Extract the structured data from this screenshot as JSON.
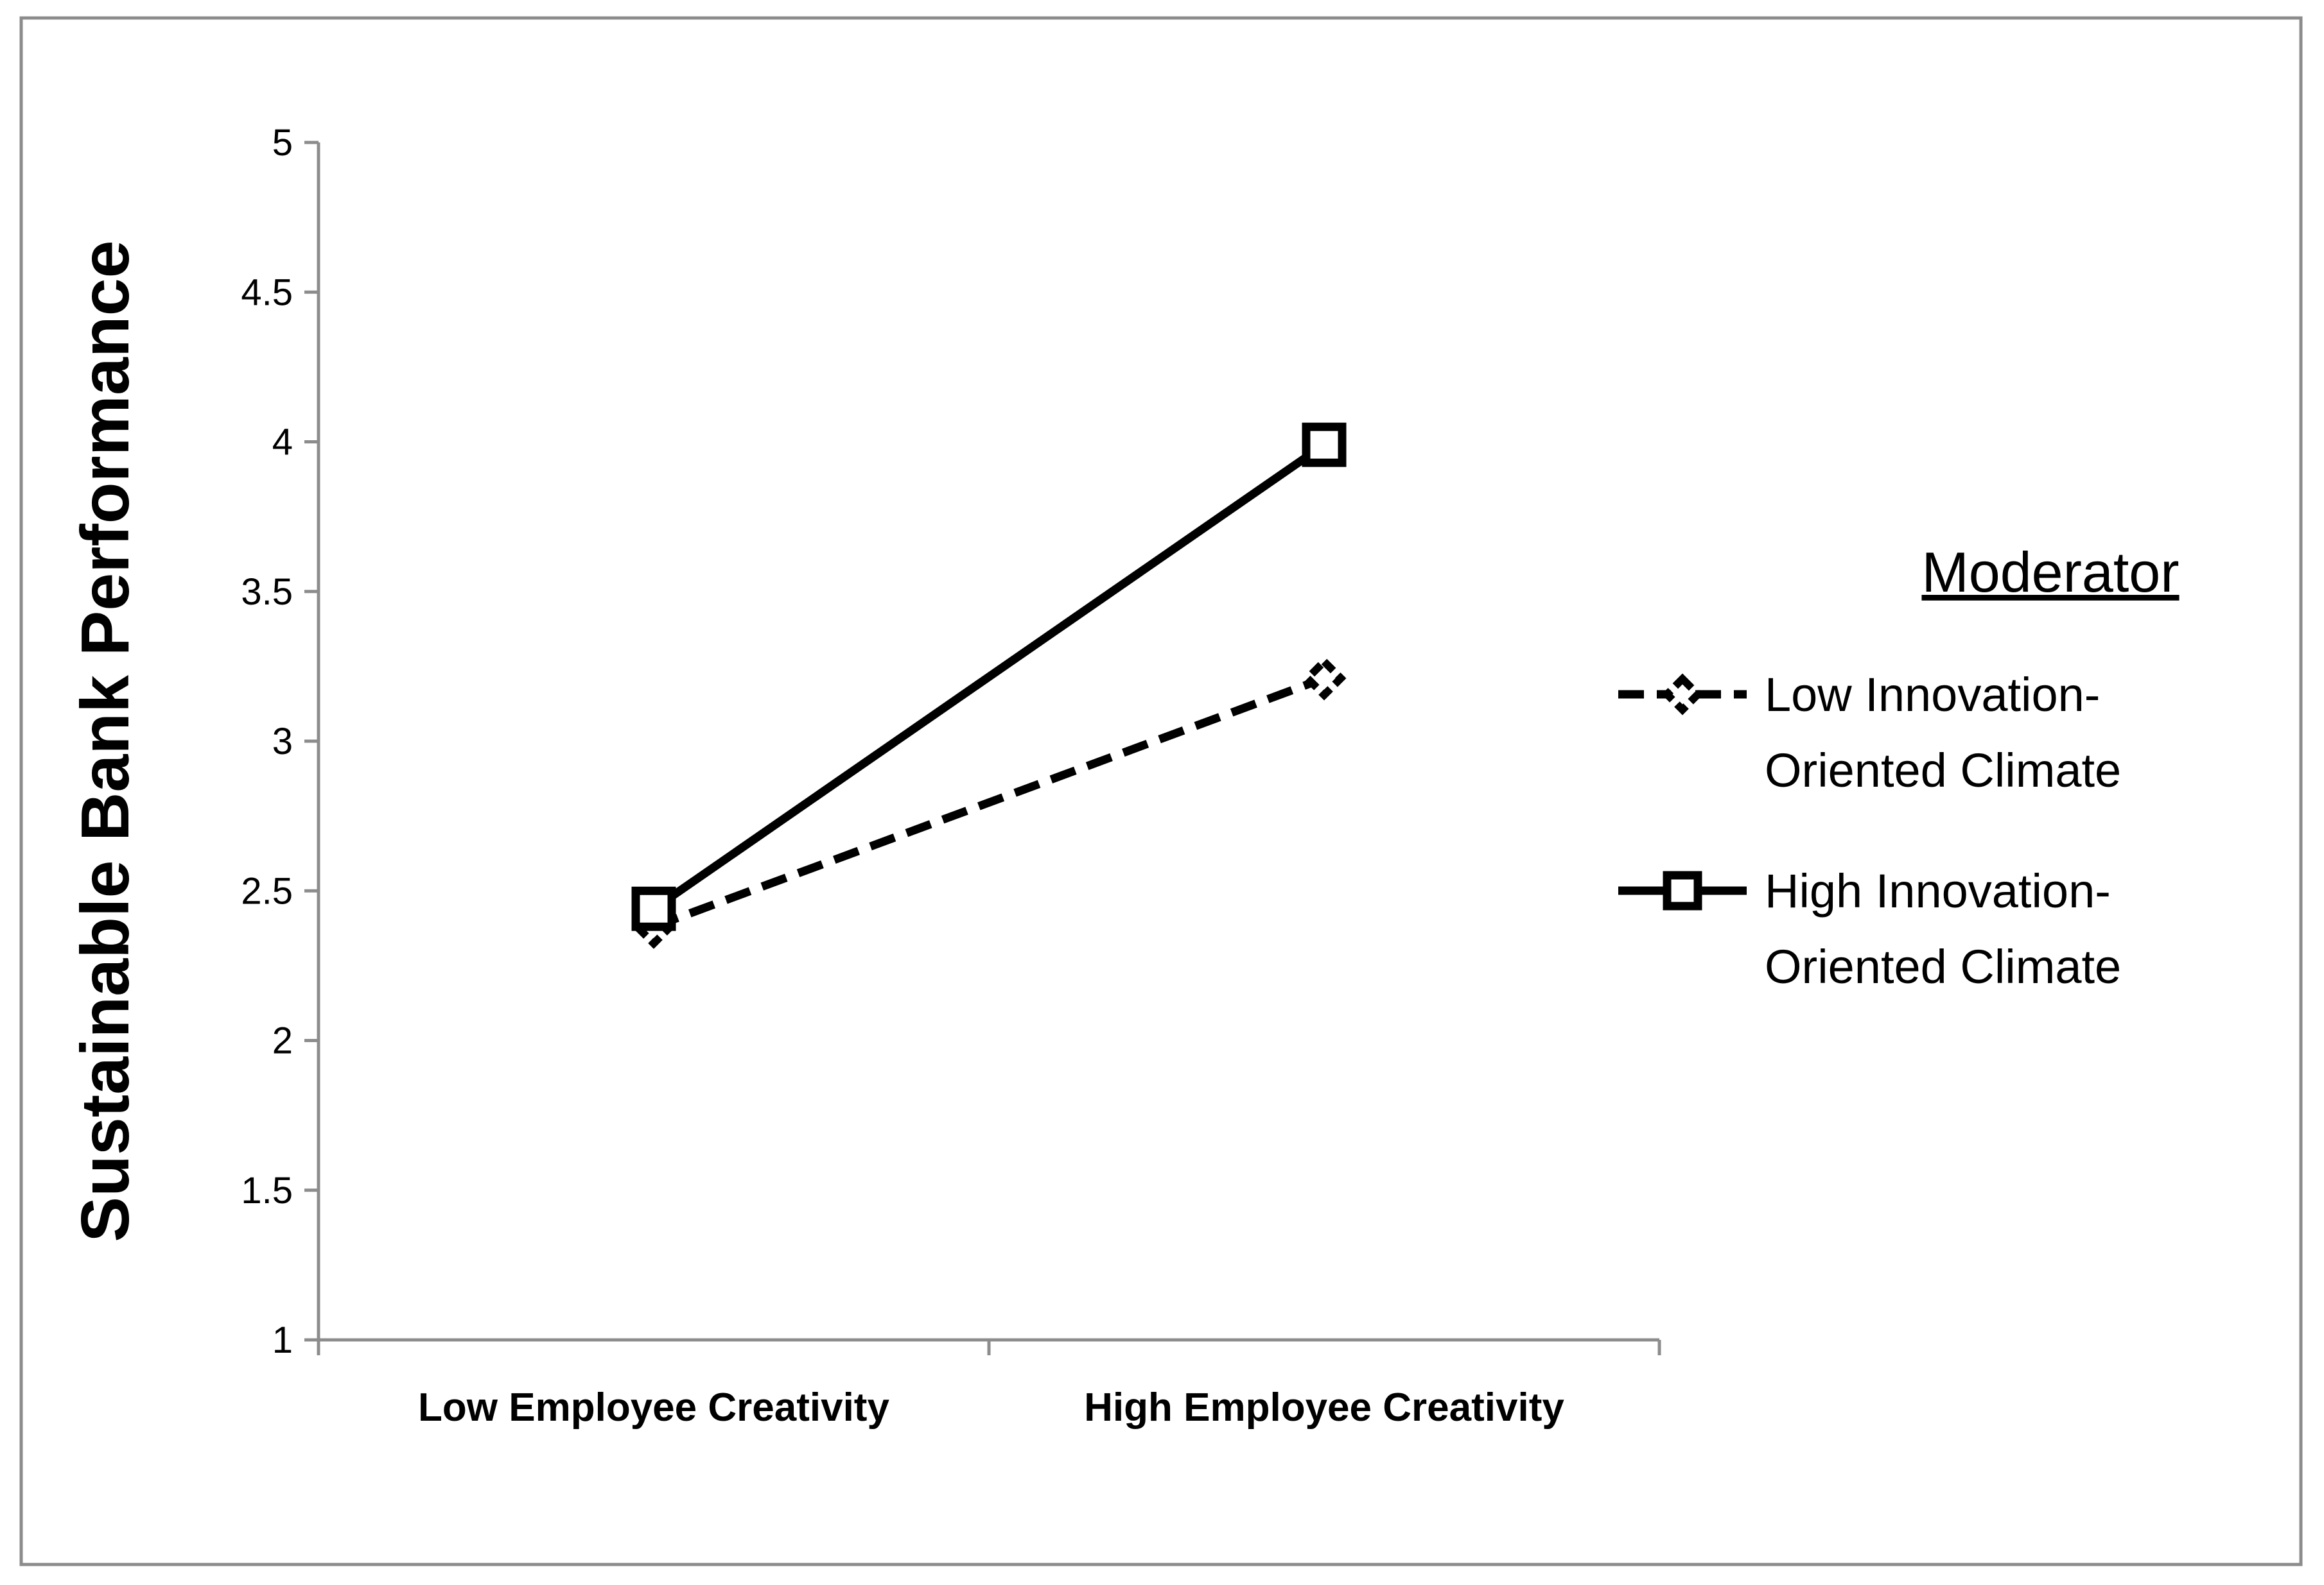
{
  "chart_data": {
    "type": "line",
    "categories": [
      "Low Employee Creativity",
      "High Employee Creativity"
    ],
    "ylabel": "Sustainable Bank Performance",
    "xlabel": "",
    "ylim": [
      1,
      5
    ],
    "yticks": [
      "1",
      "1.5",
      "2",
      "2.5",
      "3",
      "3.5",
      "4",
      "4.5",
      "5"
    ],
    "grid": false,
    "legend": {
      "title": "Moderator",
      "placement": "right"
    },
    "series": [
      {
        "name_lines": [
          "Low Innovation-",
          "Oriented Climate"
        ],
        "values": [
          2.38,
          3.21
        ],
        "style": "dashed",
        "marker": "diamond",
        "color": "#000000"
      },
      {
        "name_lines": [
          "High Innovation-",
          "Oriented Climate"
        ],
        "values": [
          2.44,
          3.99
        ],
        "style": "solid",
        "marker": "square",
        "color": "#000000"
      }
    ]
  }
}
